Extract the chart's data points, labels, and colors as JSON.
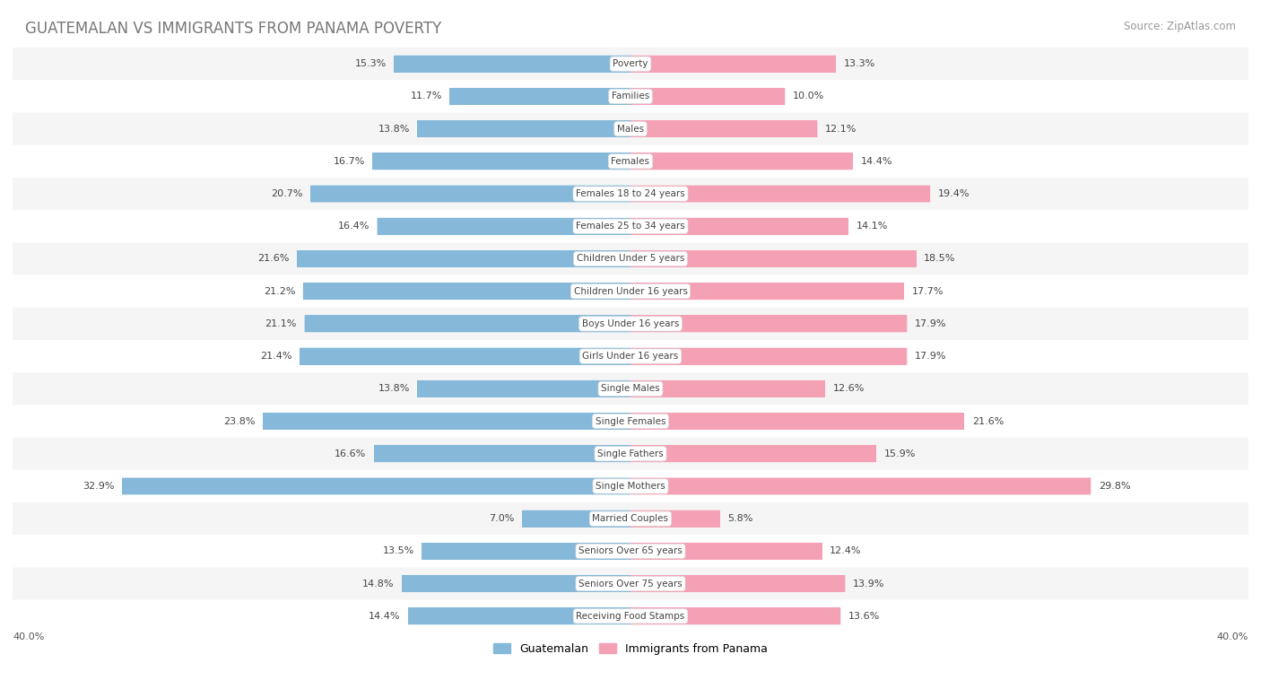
{
  "title": "GUATEMALAN VS IMMIGRANTS FROM PANAMA POVERTY",
  "source": "Source: ZipAtlas.com",
  "categories": [
    "Poverty",
    "Families",
    "Males",
    "Females",
    "Females 18 to 24 years",
    "Females 25 to 34 years",
    "Children Under 5 years",
    "Children Under 16 years",
    "Boys Under 16 years",
    "Girls Under 16 years",
    "Single Males",
    "Single Females",
    "Single Fathers",
    "Single Mothers",
    "Married Couples",
    "Seniors Over 65 years",
    "Seniors Over 75 years",
    "Receiving Food Stamps"
  ],
  "guatemalan": [
    15.3,
    11.7,
    13.8,
    16.7,
    20.7,
    16.4,
    21.6,
    21.2,
    21.1,
    21.4,
    13.8,
    23.8,
    16.6,
    32.9,
    7.0,
    13.5,
    14.8,
    14.4
  ],
  "panama": [
    13.3,
    10.0,
    12.1,
    14.4,
    19.4,
    14.1,
    18.5,
    17.7,
    17.9,
    17.9,
    12.6,
    21.6,
    15.9,
    29.8,
    5.8,
    12.4,
    13.9,
    13.6
  ],
  "blue_color": "#85B8D9",
  "pink_color": "#F4A0B5",
  "bg_row_even": "#F5F5F5",
  "bg_row_odd": "#FFFFFF",
  "x_max": 40.0,
  "legend_label_guatemalan": "Guatemalan",
  "legend_label_panama": "Immigrants from Panama",
  "title_fontsize": 12,
  "source_fontsize": 8.5,
  "value_fontsize": 8,
  "cat_fontsize": 7.5,
  "bar_height": 0.52
}
